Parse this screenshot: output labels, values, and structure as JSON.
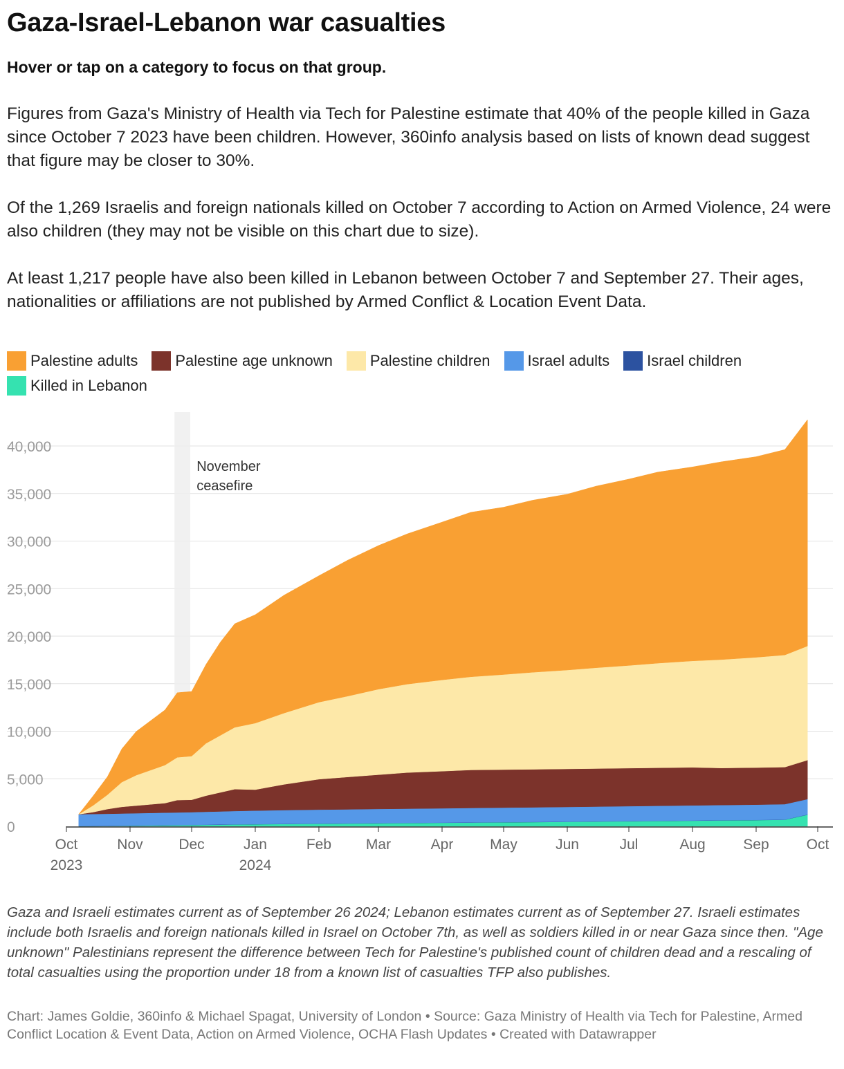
{
  "title": "Gaza-Israel-Lebanon war casualties",
  "subtitle": "Hover or tap on a category to focus on that group.",
  "description": [
    "Figures from Gaza's Ministry of Health via Tech for Palestine estimate that 40% of the people killed in Gaza since October 7 2023 have been children. However, 360info analysis based on lists of known dead suggest that figure may be closer to 30%.",
    "Of the 1,269 Israelis and foreign nationals killed on October 7 according to Action on Armed Violence, 24 were also children (they may not be visible on this chart due to size).",
    "At least 1,217 people have also been killed in Lebanon between October 7 and September 27. Their ages, nationalities or affiliations are not published by Armed Conflict & Location Event Data."
  ],
  "legend": [
    {
      "label": "Palestine adults",
      "color": "#f9a033"
    },
    {
      "label": "Palestine age unknown",
      "color": "#7c332b"
    },
    {
      "label": "Palestine children",
      "color": "#fde8a8"
    },
    {
      "label": "Israel adults",
      "color": "#5598e8"
    },
    {
      "label": "Israel children",
      "color": "#2c52a0"
    },
    {
      "label": "Killed in Lebanon",
      "color": "#35e2b0"
    }
  ],
  "notes": "Gaza and Israeli estimates current as of September 26 2024; Lebanon estimates current as of September 27. Israeli estimates include both Israelis and foreign nationals killed in Israel on October 7th, as well as soldiers killed in or near Gaza since then. \"Age unknown\" Palestinians represent the difference between Tech for Palestine's published count of children dead and a rescaling of total casualties using the proportion under 18 from a known list of casualties TFP also publishes.",
  "credit": "Chart: James Goldie, 360info & Michael Spagat, University of London • Source: Gaza Ministry of Health via Tech for Palestine, Armed Conflict Location & Event Data, Action on Armed Violence, OCHA Flash Updates • Created with Datawrapper",
  "chart_data": {
    "type": "area",
    "stacked": true,
    "x": [
      "2023-10-07",
      "2023-10-14",
      "2023-10-21",
      "2023-10-28",
      "2023-11-04",
      "2023-11-11",
      "2023-11-18",
      "2023-11-24",
      "2023-12-01",
      "2023-12-08",
      "2023-12-15",
      "2023-12-22",
      "2024-01-01",
      "2024-01-15",
      "2024-02-01",
      "2024-02-15",
      "2024-03-01",
      "2024-03-15",
      "2024-04-01",
      "2024-04-15",
      "2024-05-01",
      "2024-05-15",
      "2024-06-01",
      "2024-06-15",
      "2024-07-01",
      "2024-07-15",
      "2024-08-01",
      "2024-08-15",
      "2024-09-01",
      "2024-09-15",
      "2024-09-26"
    ],
    "series": [
      {
        "name": "Killed in Lebanon",
        "color": "#35e2b0",
        "values": [
          0,
          10,
          20,
          40,
          60,
          80,
          100,
          110,
          130,
          150,
          170,
          190,
          210,
          240,
          270,
          290,
          320,
          340,
          370,
          390,
          420,
          440,
          470,
          500,
          530,
          560,
          590,
          620,
          650,
          690,
          1217
        ]
      },
      {
        "name": "Israel children",
        "color": "#2c52a0",
        "values": [
          24,
          24,
          24,
          24,
          24,
          24,
          24,
          24,
          24,
          24,
          24,
          24,
          24,
          24,
          24,
          24,
          24,
          24,
          24,
          24,
          24,
          24,
          24,
          24,
          24,
          24,
          24,
          24,
          24,
          24,
          24
        ]
      },
      {
        "name": "Israel adults",
        "color": "#5598e8",
        "values": [
          1245,
          1260,
          1270,
          1280,
          1290,
          1300,
          1310,
          1320,
          1330,
          1350,
          1370,
          1390,
          1420,
          1440,
          1460,
          1470,
          1480,
          1490,
          1500,
          1510,
          1520,
          1530,
          1540,
          1550,
          1560,
          1570,
          1580,
          1590,
          1600,
          1610,
          1620
        ]
      },
      {
        "name": "Palestine age unknown",
        "color": "#7c332b",
        "values": [
          0,
          200,
          500,
          700,
          800,
          900,
          1000,
          1300,
          1300,
          1700,
          2000,
          2300,
          2200,
          2700,
          3200,
          3400,
          3600,
          3800,
          3900,
          4000,
          4000,
          4000,
          4000,
          4000,
          4000,
          4000,
          4000,
          3900,
          3900,
          3900,
          4100
        ]
      },
      {
        "name": "Palestine children",
        "color": "#fde8a8",
        "values": [
          0,
          700,
          1500,
          2600,
          3200,
          3600,
          4000,
          4500,
          4600,
          5500,
          6000,
          6500,
          7000,
          7500,
          8100,
          8500,
          9000,
          9300,
          9600,
          9800,
          10000,
          10200,
          10400,
          10600,
          10800,
          11000,
          11200,
          11400,
          11600,
          11800,
          12000
        ]
      },
      {
        "name": "Palestine adults",
        "color": "#f9a033",
        "values": [
          0,
          1000,
          1900,
          3500,
          4600,
          5200,
          5800,
          6800,
          6800,
          8300,
          9800,
          10900,
          11400,
          12400,
          13300,
          14300,
          15100,
          15800,
          16600,
          17300,
          17600,
          18100,
          18500,
          19100,
          19600,
          20100,
          20400,
          20800,
          21100,
          21600,
          23800
        ]
      }
    ],
    "x_ticks": [
      {
        "date": "2023-10-01",
        "label": "Oct",
        "year": "2023"
      },
      {
        "date": "2023-11-01",
        "label": "Nov",
        "year": ""
      },
      {
        "date": "2023-12-01",
        "label": "Dec",
        "year": ""
      },
      {
        "date": "2024-01-01",
        "label": "Jan",
        "year": "2024"
      },
      {
        "date": "2024-02-01",
        "label": "Feb",
        "year": ""
      },
      {
        "date": "2024-03-01",
        "label": "Mar",
        "year": ""
      },
      {
        "date": "2024-04-01",
        "label": "Apr",
        "year": ""
      },
      {
        "date": "2024-05-01",
        "label": "May",
        "year": ""
      },
      {
        "date": "2024-06-01",
        "label": "Jun",
        "year": ""
      },
      {
        "date": "2024-07-01",
        "label": "Jul",
        "year": ""
      },
      {
        "date": "2024-08-01",
        "label": "Aug",
        "year": ""
      },
      {
        "date": "2024-09-01",
        "label": "Sep",
        "year": ""
      },
      {
        "date": "2024-10-01",
        "label": "Oct",
        "year": ""
      }
    ],
    "y_ticks": [
      0,
      5000,
      10000,
      15000,
      20000,
      25000,
      30000,
      35000,
      40000
    ],
    "y_tick_labels": [
      "0",
      "5,000",
      "10,000",
      "15,000",
      "20,000",
      "25,000",
      "30,000",
      "35,000",
      "40,000"
    ],
    "ylim": [
      0,
      44000
    ],
    "xlim": [
      "2023-10-01",
      "2024-10-01"
    ],
    "annotation": {
      "start": "2023-11-24",
      "end": "2023-12-01",
      "label_line1": "November",
      "label_line2": "ceasefire"
    },
    "grid": true
  }
}
